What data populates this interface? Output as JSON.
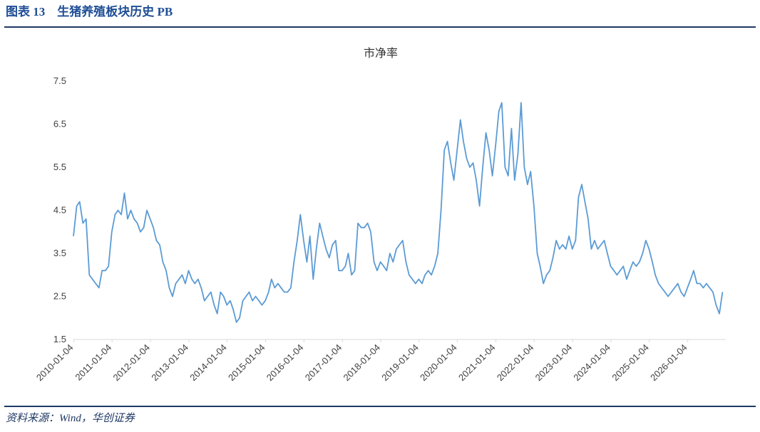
{
  "header": {
    "title": "图表 13　生猪养殖板块历史 PB"
  },
  "source": "资料来源：Wind，华创证券",
  "chart_data": {
    "type": "line",
    "title": "市净率",
    "x": [
      "2010-01",
      "2010-02",
      "2010-03",
      "2010-04",
      "2010-05",
      "2010-06",
      "2010-07",
      "2010-08",
      "2010-09",
      "2010-10",
      "2010-11",
      "2010-12",
      "2011-01",
      "2011-02",
      "2011-03",
      "2011-04",
      "2011-05",
      "2011-06",
      "2011-07",
      "2011-08",
      "2011-09",
      "2011-10",
      "2011-11",
      "2011-12",
      "2012-01",
      "2012-02",
      "2012-03",
      "2012-04",
      "2012-05",
      "2012-06",
      "2012-07",
      "2012-08",
      "2012-09",
      "2012-10",
      "2012-11",
      "2012-12",
      "2013-01",
      "2013-02",
      "2013-03",
      "2013-04",
      "2013-05",
      "2013-06",
      "2013-07",
      "2013-08",
      "2013-09",
      "2013-10",
      "2013-11",
      "2013-12",
      "2014-01",
      "2014-02",
      "2014-03",
      "2014-04",
      "2014-05",
      "2014-06",
      "2014-07",
      "2014-08",
      "2014-09",
      "2014-10",
      "2014-11",
      "2014-12",
      "2015-01",
      "2015-02",
      "2015-03",
      "2015-04",
      "2015-05",
      "2015-06",
      "2015-07",
      "2015-08",
      "2015-09",
      "2015-10",
      "2015-11",
      "2015-12",
      "2016-01",
      "2016-02",
      "2016-03",
      "2016-04",
      "2016-05",
      "2016-06",
      "2016-07",
      "2016-08",
      "2016-09",
      "2016-10",
      "2016-11",
      "2016-12",
      "2017-01",
      "2017-02",
      "2017-03",
      "2017-04",
      "2017-05",
      "2017-06",
      "2017-07",
      "2017-08",
      "2017-09",
      "2017-10",
      "2017-11",
      "2017-12",
      "2018-01",
      "2018-02",
      "2018-03",
      "2018-04",
      "2018-05",
      "2018-06",
      "2018-07",
      "2018-08",
      "2018-09",
      "2018-10",
      "2018-11",
      "2018-12",
      "2019-01",
      "2019-02",
      "2019-03",
      "2019-04",
      "2019-05",
      "2019-06",
      "2019-07",
      "2019-08",
      "2019-09",
      "2019-10",
      "2019-11",
      "2019-12",
      "2020-01",
      "2020-02",
      "2020-03",
      "2020-04",
      "2020-05",
      "2020-06",
      "2020-07",
      "2020-08",
      "2020-09",
      "2020-10",
      "2020-11",
      "2020-12",
      "2021-01",
      "2021-02",
      "2021-03",
      "2021-04",
      "2021-05",
      "2021-06",
      "2021-07",
      "2021-08",
      "2021-09",
      "2021-10",
      "2021-11",
      "2021-12",
      "2022-01",
      "2022-02",
      "2022-03",
      "2022-04",
      "2022-05",
      "2022-06",
      "2022-07",
      "2022-08",
      "2022-09",
      "2022-10",
      "2022-11",
      "2022-12",
      "2023-01",
      "2023-02",
      "2023-03",
      "2023-04",
      "2023-05",
      "2023-06",
      "2023-07",
      "2023-08",
      "2023-09",
      "2023-10",
      "2023-11",
      "2023-12",
      "2024-01",
      "2024-02",
      "2024-03",
      "2024-04",
      "2024-05",
      "2024-06",
      "2024-07",
      "2024-08",
      "2024-09",
      "2024-10",
      "2024-11",
      "2024-12",
      "2025-01",
      "2025-02",
      "2025-03",
      "2025-04",
      "2025-05",
      "2025-06",
      "2025-07",
      "2025-08",
      "2025-09",
      "2025-10",
      "2025-11",
      "2025-12",
      "2026-01",
      "2026-02",
      "2026-03",
      "2026-04",
      "2026-05",
      "2026-06",
      "2026-07",
      "2026-08",
      "2026-09",
      "2026-10",
      "2026-11",
      "2026-12"
    ],
    "series": [
      {
        "color": "#5b9bd5",
        "values": [
          3.9,
          4.6,
          4.7,
          4.2,
          4.3,
          3.0,
          2.9,
          2.8,
          2.7,
          3.1,
          3.1,
          3.2,
          4.0,
          4.4,
          4.5,
          4.4,
          4.9,
          4.3,
          4.5,
          4.3,
          4.2,
          4.0,
          4.1,
          4.5,
          4.3,
          4.1,
          3.8,
          3.7,
          3.3,
          3.1,
          2.7,
          2.5,
          2.8,
          2.9,
          3.0,
          2.8,
          3.1,
          2.9,
          2.8,
          2.9,
          2.7,
          2.4,
          2.5,
          2.6,
          2.3,
          2.1,
          2.6,
          2.5,
          2.3,
          2.4,
          2.2,
          1.9,
          2.0,
          2.4,
          2.5,
          2.6,
          2.4,
          2.5,
          2.4,
          2.3,
          2.4,
          2.6,
          2.9,
          2.7,
          2.8,
          2.7,
          2.6,
          2.6,
          2.7,
          3.3,
          3.8,
          4.4,
          3.8,
          3.3,
          3.9,
          2.9,
          3.6,
          4.2,
          3.9,
          3.6,
          3.4,
          3.7,
          3.8,
          3.1,
          3.1,
          3.2,
          3.5,
          3.0,
          3.1,
          4.2,
          4.1,
          4.1,
          4.2,
          4.0,
          3.3,
          3.1,
          3.3,
          3.2,
          3.1,
          3.5,
          3.3,
          3.6,
          3.7,
          3.8,
          3.3,
          3.0,
          2.9,
          2.8,
          2.9,
          2.8,
          3.0,
          3.1,
          3.0,
          3.2,
          3.5,
          4.5,
          5.9,
          6.1,
          5.6,
          5.2,
          5.9,
          6.6,
          6.1,
          5.7,
          5.5,
          5.6,
          5.2,
          4.6,
          5.5,
          6.3,
          5.9,
          5.3,
          6.0,
          6.8,
          7.0,
          5.5,
          5.3,
          6.4,
          5.2,
          5.8,
          7.0,
          5.5,
          5.1,
          5.4,
          4.6,
          3.5,
          3.2,
          2.8,
          3.0,
          3.1,
          3.4,
          3.8,
          3.6,
          3.7,
          3.6,
          3.9,
          3.6,
          3.8,
          4.8,
          5.1,
          4.7,
          4.3,
          3.6,
          3.8,
          3.6,
          3.7,
          3.8,
          3.5,
          3.2,
          3.1,
          3.0,
          3.1,
          3.2,
          2.9,
          3.1,
          3.3,
          3.2,
          3.3,
          3.5,
          3.8,
          3.6,
          3.3,
          3.0,
          2.8,
          2.7,
          2.6,
          2.5,
          2.6,
          2.7,
          2.8,
          2.6,
          2.5,
          2.7,
          2.9,
          3.1,
          2.8,
          2.8,
          2.7,
          2.8,
          2.7,
          2.6,
          2.3,
          2.1,
          2.6
        ]
      }
    ],
    "xlim": [
      "2010-01-01",
      "2027-01-01"
    ],
    "xticks": [
      "2010-01-04",
      "2011-01-04",
      "2012-01-04",
      "2013-01-04",
      "2014-01-04",
      "2015-01-04",
      "2016-01-04",
      "2017-01-04",
      "2018-01-04",
      "2019-01-04",
      "2020-01-04",
      "2021-01-04",
      "2022-01-04",
      "2023-01-04",
      "2024-01-04",
      "2025-01-04",
      "2026-01-04"
    ],
    "ylim": [
      1.5,
      7.5
    ],
    "yticks": [
      1.5,
      2.5,
      3.5,
      4.5,
      5.5,
      6.5,
      7.5
    ],
    "grid": false
  }
}
